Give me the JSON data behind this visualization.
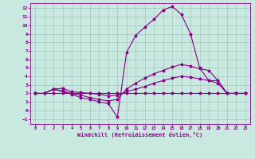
{
  "background_color": "#c8e8e0",
  "grid_color": "#a0c8c0",
  "line_color": "#880088",
  "xlabel": "Windchill (Refroidissement éolien,°C)",
  "xlim": [
    -0.5,
    23.5
  ],
  "ylim": [
    -1.6,
    12.6
  ],
  "xticks": [
    0,
    1,
    2,
    3,
    4,
    5,
    6,
    7,
    8,
    9,
    10,
    11,
    12,
    13,
    14,
    15,
    16,
    17,
    18,
    19,
    20,
    21,
    22,
    23
  ],
  "yticks": [
    -1,
    0,
    1,
    2,
    3,
    4,
    5,
    6,
    7,
    8,
    9,
    10,
    11,
    12
  ],
  "curve1_x": [
    0,
    1,
    2,
    3,
    4,
    5,
    6,
    7,
    8,
    9,
    10,
    11,
    12,
    13,
    14,
    15,
    16,
    17,
    18,
    19,
    20,
    21,
    22,
    23
  ],
  "curve1_y": [
    2,
    2,
    2,
    2,
    2,
    2,
    2,
    2,
    2,
    2,
    2,
    2,
    2,
    2,
    2,
    2,
    2,
    2,
    2,
    2,
    2,
    2,
    2,
    2
  ],
  "curve2_x": [
    0,
    1,
    2,
    3,
    4,
    5,
    6,
    7,
    8,
    9,
    10,
    11,
    12,
    13,
    14,
    15,
    16,
    17,
    18,
    19,
    20,
    21,
    22,
    23
  ],
  "curve2_y": [
    2,
    2,
    2.5,
    2.6,
    2.2,
    2.1,
    2.0,
    1.9,
    1.7,
    1.8,
    2.2,
    2.5,
    2.8,
    3.2,
    3.5,
    3.8,
    4.0,
    3.9,
    3.7,
    3.5,
    3.5,
    2.0,
    2.0,
    2.0
  ],
  "curve3_x": [
    0,
    1,
    2,
    3,
    4,
    5,
    6,
    7,
    8,
    9,
    10,
    11,
    12,
    13,
    14,
    15,
    16,
    17,
    18,
    19,
    20,
    21,
    22,
    23
  ],
  "curve3_y": [
    2,
    2,
    2.5,
    2.3,
    2.0,
    1.8,
    1.5,
    1.3,
    1.1,
    1.3,
    2.5,
    3.2,
    3.8,
    4.3,
    4.7,
    5.1,
    5.4,
    5.2,
    4.9,
    4.7,
    3.5,
    2.0,
    2.0,
    2.0
  ],
  "curve4_x": [
    0,
    1,
    2,
    3,
    4,
    5,
    6,
    7,
    8,
    9,
    10,
    11,
    12,
    13,
    14,
    15,
    16,
    17,
    18,
    19,
    20,
    21,
    22,
    23
  ],
  "curve4_y": [
    2,
    2,
    2.5,
    2.2,
    1.9,
    1.5,
    1.3,
    1.0,
    0.8,
    -0.8,
    6.8,
    8.8,
    9.8,
    10.7,
    11.8,
    12.2,
    11.3,
    9.0,
    5.0,
    3.5,
    3.2,
    2.0,
    2.0,
    2.0
  ]
}
